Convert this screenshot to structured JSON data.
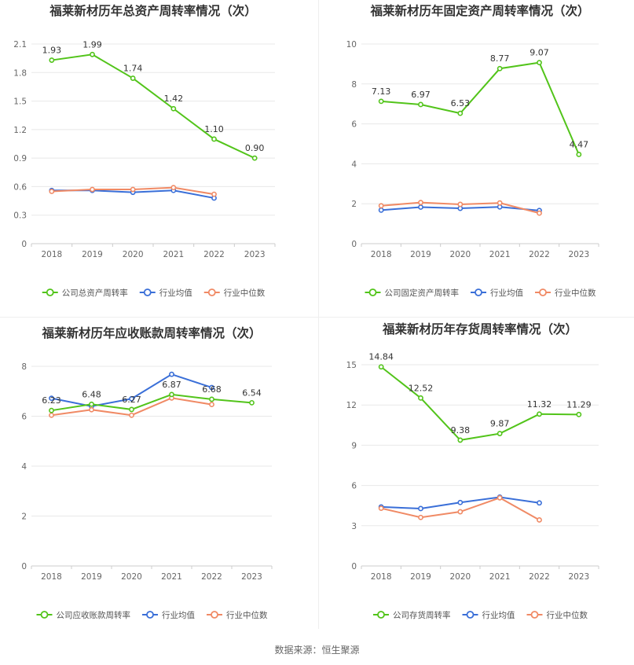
{
  "colors": {
    "company": "#52c41a",
    "avg": "#3a6fd8",
    "median": "#f08a65",
    "grid": "#e8e8e8",
    "axis": "#cccccc"
  },
  "source_text": "数据来源：恒生聚源",
  "chart_data": [
    {
      "type": "line",
      "title": "福莱新材历年总资产周转率情况（次）",
      "categories": [
        "2018",
        "2019",
        "2020",
        "2021",
        "2022",
        "2023"
      ],
      "ylim": [
        0,
        2.1
      ],
      "yticks": [
        "0",
        "0.3",
        "0.6",
        "0.9",
        "1.2",
        "1.5",
        "1.8",
        "2.1"
      ],
      "legend_position": "bottom",
      "series": [
        {
          "name": "公司总资产周转率",
          "values": [
            1.93,
            1.99,
            1.74,
            1.42,
            1.1,
            0.9
          ],
          "labels": [
            "1.93",
            "1.99",
            "1.74",
            "1.42",
            "1.10",
            "0.90"
          ]
        },
        {
          "name": "行业均值",
          "values": [
            0.56,
            0.56,
            0.54,
            0.56,
            0.48,
            null
          ]
        },
        {
          "name": "行业中位数",
          "values": [
            0.55,
            0.57,
            0.57,
            0.59,
            0.52,
            null
          ]
        }
      ]
    },
    {
      "type": "line",
      "title": "福莱新材历年固定资产周转率情况（次）",
      "categories": [
        "2018",
        "2019",
        "2020",
        "2021",
        "2022",
        "2023"
      ],
      "ylim": [
        0,
        10
      ],
      "yticks": [
        "0",
        "2",
        "4",
        "6",
        "8",
        "10"
      ],
      "legend_position": "bottom",
      "series": [
        {
          "name": "公司固定资产周转率",
          "values": [
            7.13,
            6.97,
            6.53,
            8.77,
            9.07,
            4.47
          ],
          "labels": [
            "7.13",
            "6.97",
            "6.53",
            "8.77",
            "9.07",
            "4.47"
          ]
        },
        {
          "name": "行业均值",
          "values": [
            1.68,
            1.83,
            1.77,
            1.84,
            1.66,
            null
          ]
        },
        {
          "name": "行业中位数",
          "values": [
            1.9,
            2.06,
            1.97,
            2.04,
            1.53,
            null
          ]
        }
      ]
    },
    {
      "type": "line",
      "title": "福莱新材历年应收账款周转率情况（次）",
      "categories": [
        "2018",
        "2019",
        "2020",
        "2021",
        "2022",
        "2023"
      ],
      "ylim": [
        0,
        8
      ],
      "yticks": [
        "0",
        "2",
        "4",
        "6",
        "8"
      ],
      "legend_position": "bottom",
      "series": [
        {
          "name": "公司应收账款周转率",
          "values": [
            6.23,
            6.48,
            6.27,
            6.87,
            6.68,
            6.54
          ],
          "labels": [
            "6.23",
            "6.48",
            "6.27",
            "6.87",
            "6.68",
            "6.54"
          ]
        },
        {
          "name": "行业均值",
          "values": [
            6.72,
            6.4,
            6.7,
            7.68,
            7.15,
            null
          ]
        },
        {
          "name": "行业中位数",
          "values": [
            6.04,
            6.26,
            6.04,
            6.73,
            6.47,
            null
          ]
        }
      ]
    },
    {
      "type": "line",
      "title": "福莱新材历年存货周转率情况（次）",
      "categories": [
        "2018",
        "2019",
        "2020",
        "2021",
        "2022",
        "2023"
      ],
      "ylim": [
        0,
        15
      ],
      "yticks": [
        "0",
        "3",
        "6",
        "9",
        "12",
        "15"
      ],
      "legend_position": "bottom",
      "series": [
        {
          "name": "公司存货周转率",
          "values": [
            14.84,
            12.52,
            9.38,
            9.87,
            11.32,
            11.29
          ],
          "labels": [
            "14.84",
            "12.52",
            "9.38",
            "9.87",
            "11.32",
            "11.29"
          ]
        },
        {
          "name": "行业均值",
          "values": [
            4.4,
            4.28,
            4.73,
            5.13,
            4.7,
            null
          ]
        },
        {
          "name": "行业中位数",
          "values": [
            4.3,
            3.62,
            4.04,
            5.08,
            3.43,
            null
          ]
        }
      ]
    }
  ]
}
